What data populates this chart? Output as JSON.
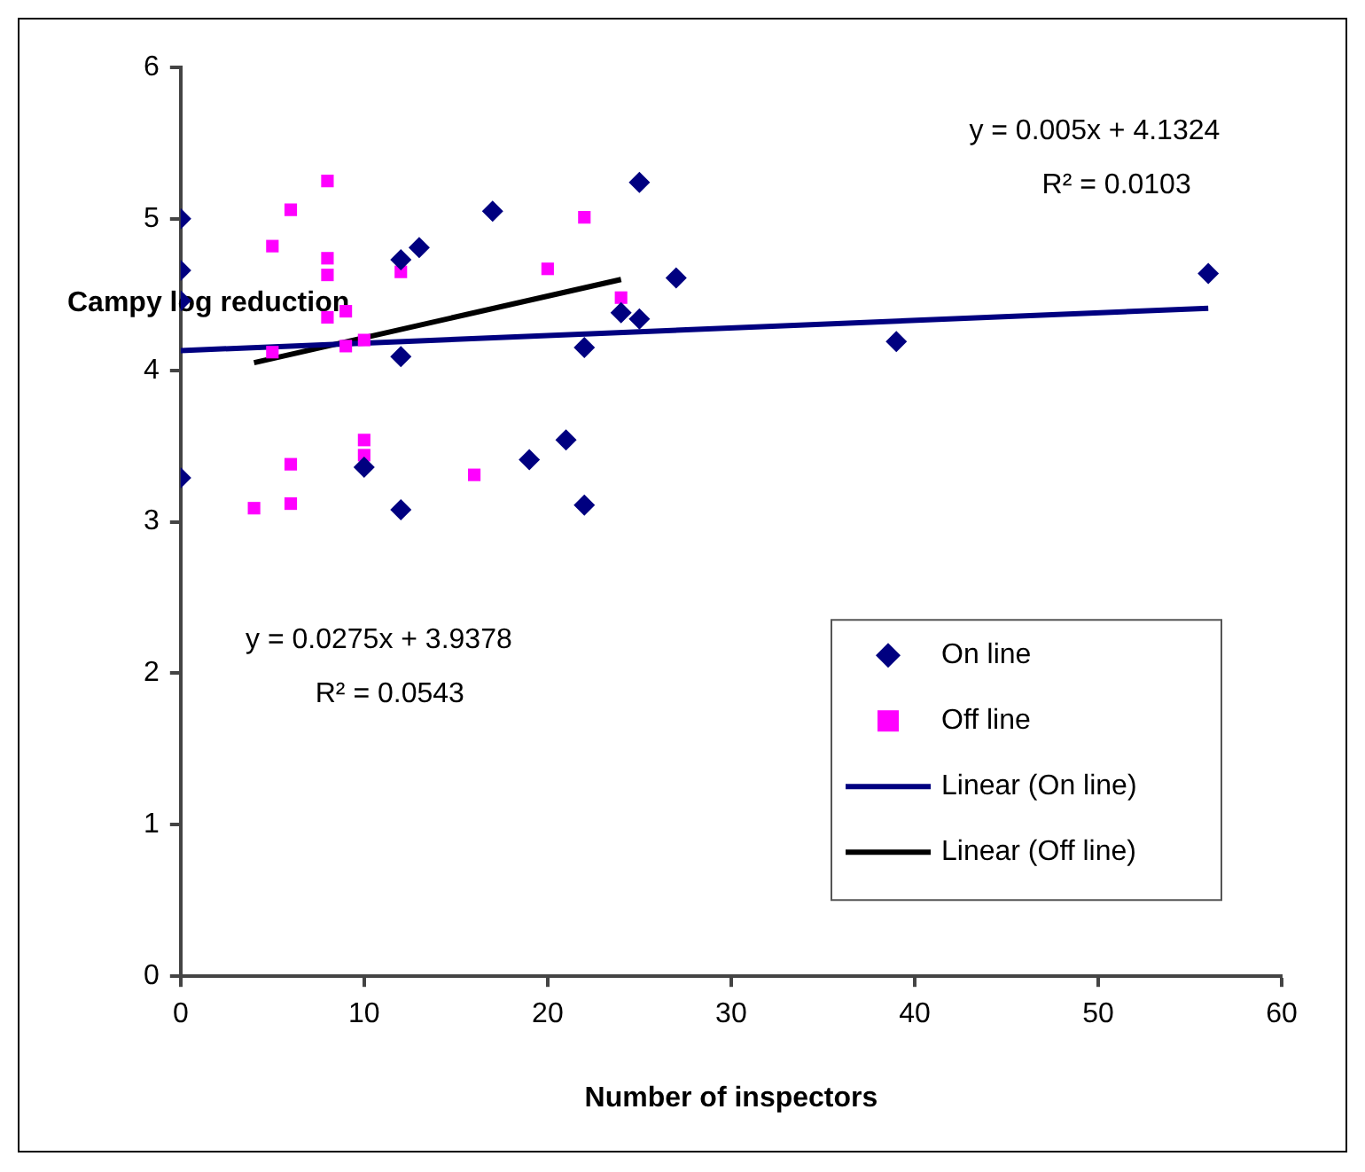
{
  "chart_data": {
    "type": "scatter",
    "xlabel": "Number of inspectors",
    "ylabel": "Campy log reduction",
    "xlim": [
      0,
      60
    ],
    "xticks": [
      0,
      10,
      20,
      30,
      40,
      50,
      60
    ],
    "ylim": [
      0,
      6
    ],
    "yticks": [
      0,
      1,
      2,
      3,
      4,
      5,
      6
    ],
    "grid": false,
    "legend": "bottom right",
    "series": [
      {
        "name": "On line",
        "type": "scatter",
        "marker": "diamond",
        "color": "#000080",
        "x": [
          0,
          0,
          0,
          0,
          12,
          13,
          17,
          10,
          12,
          12,
          25,
          27,
          24,
          25,
          22,
          21,
          19,
          22,
          39,
          56
        ],
        "values": [
          5.0,
          4.66,
          4.46,
          3.29,
          4.73,
          4.81,
          5.05,
          3.36,
          4.09,
          3.08,
          5.24,
          4.61,
          4.38,
          4.34,
          4.15,
          3.54,
          3.41,
          3.11,
          4.19,
          4.64
        ]
      },
      {
        "name": "Off line",
        "type": "scatter",
        "marker": "square",
        "color": "#ff00ff",
        "x": [
          8,
          6,
          5,
          8,
          8,
          12,
          8,
          9,
          5,
          9,
          10,
          10,
          10,
          6,
          16,
          4,
          6,
          22,
          20,
          24
        ],
        "values": [
          5.25,
          5.06,
          4.82,
          4.74,
          4.63,
          4.65,
          4.35,
          4.39,
          4.12,
          4.16,
          4.2,
          3.54,
          3.44,
          3.38,
          3.31,
          3.09,
          3.12,
          5.01,
          4.67,
          4.48
        ]
      },
      {
        "name": "Linear (On line)",
        "type": "line",
        "marker": "none",
        "color": "#000080",
        "x": [
          0,
          56
        ],
        "values": [
          4.13,
          4.41
        ]
      },
      {
        "name": "Linear (Off line)",
        "type": "line",
        "marker": "none",
        "color": "#000000",
        "x": [
          4,
          24
        ],
        "values": [
          4.05,
          4.6
        ]
      }
    ],
    "annotations": [
      "y = 0.005x + 4.1324",
      "R² = 0.0103",
      "y = 0.0275x + 3.9378",
      "R² = 0.0543"
    ]
  }
}
